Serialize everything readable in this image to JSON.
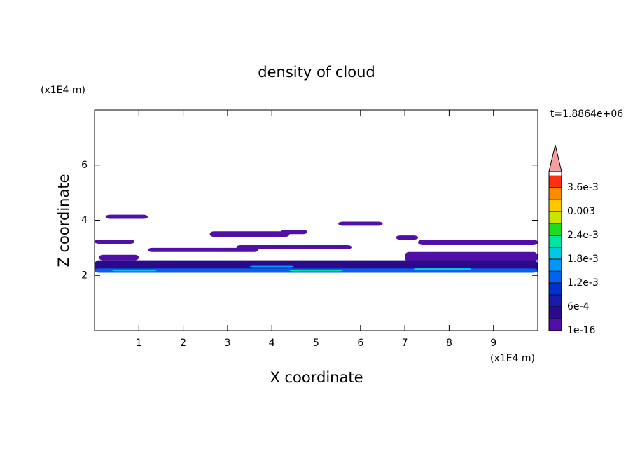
{
  "chart_data": {
    "type": "contour",
    "title": "density of cloud",
    "x_label": "X coordinate",
    "y_label": "Z coordinate",
    "x_unit": "(x1E4 m)",
    "y_unit": "(x1E4 m)",
    "time_label": "t=1.8864e+06",
    "xlim": [
      0,
      10
    ],
    "ylim": [
      0,
      8
    ],
    "xticks": [
      1,
      2,
      3,
      4,
      5,
      6,
      7,
      8,
      9
    ],
    "yticks": [
      2,
      4,
      6
    ],
    "clim": [
      0,
      0.0039
    ],
    "colors": [
      "#5010a8",
      "#2a0a8a",
      "#1a1aa8",
      "#0030d0",
      "#0064f0",
      "#0096ff",
      "#00c8e6",
      "#00e6a0",
      "#20dc20",
      "#c8e600",
      "#ffc800",
      "#ff8c00",
      "#ff3010"
    ],
    "cticks": [
      {
        "value": 1e-16,
        "label": "1e-16"
      },
      {
        "value": 0.0006,
        "label": "6e-4"
      },
      {
        "value": 0.0012,
        "label": "1.2e-3"
      },
      {
        "value": 0.0018,
        "label": "1.8e-3"
      },
      {
        "value": 0.0024,
        "label": "2.4e-3"
      },
      0.003,
      {
        "value": 0.0036,
        "label": "3.6e-3"
      }
    ],
    "patches": [
      {
        "x0": 0.25,
        "x1": 1.2,
        "z0": 4.05,
        "z1": 4.2,
        "density": 0.00015
      },
      {
        "x0": 0,
        "x1": 0.9,
        "z0": 3.15,
        "z1": 3.3,
        "density": 0.00015
      },
      {
        "x0": 2.6,
        "x1": 4.4,
        "z0": 3.4,
        "z1": 3.6,
        "density": 0.00015
      },
      {
        "x0": 4.2,
        "x1": 4.8,
        "z0": 3.5,
        "z1": 3.65,
        "density": 0.00015
      },
      {
        "x0": 5.5,
        "x1": 6.5,
        "z0": 3.8,
        "z1": 3.95,
        "density": 0.00015
      },
      {
        "x0": 6.8,
        "x1": 7.3,
        "z0": 3.3,
        "z1": 3.45,
        "density": 0.00015
      },
      {
        "x0": 7.3,
        "x1": 10,
        "z0": 3.1,
        "z1": 3.3,
        "density": 0.00015
      },
      {
        "x0": 3.2,
        "x1": 5.8,
        "z0": 2.95,
        "z1": 3.1,
        "density": 0.00015
      },
      {
        "x0": 1.2,
        "x1": 3.7,
        "z0": 2.85,
        "z1": 3.0,
        "density": 0.00015
      },
      {
        "x0": 0.1,
        "x1": 1.0,
        "z0": 2.55,
        "z1": 2.75,
        "density": 0.00015
      },
      {
        "x0": 7.0,
        "x1": 10,
        "z0": 2.5,
        "z1": 2.85,
        "density": 0.00015
      },
      {
        "x0": 0,
        "x1": 10,
        "z0": 2.1,
        "z1": 2.55,
        "density": 0.00045
      },
      {
        "x0": 0,
        "x1": 10,
        "z0": 2.1,
        "z1": 2.25,
        "density": 0.0013
      },
      {
        "x0": 0.4,
        "x1": 1.4,
        "z0": 2.15,
        "z1": 2.2,
        "density": 0.0018
      },
      {
        "x0": 3.5,
        "x1": 4.5,
        "z0": 2.3,
        "z1": 2.35,
        "density": 0.0015
      },
      {
        "x0": 4.4,
        "x1": 5.6,
        "z0": 2.15,
        "z1": 2.2,
        "density": 0.0021
      },
      {
        "x0": 7.2,
        "x1": 8.5,
        "z0": 2.2,
        "z1": 2.27,
        "density": 0.0018
      }
    ]
  }
}
